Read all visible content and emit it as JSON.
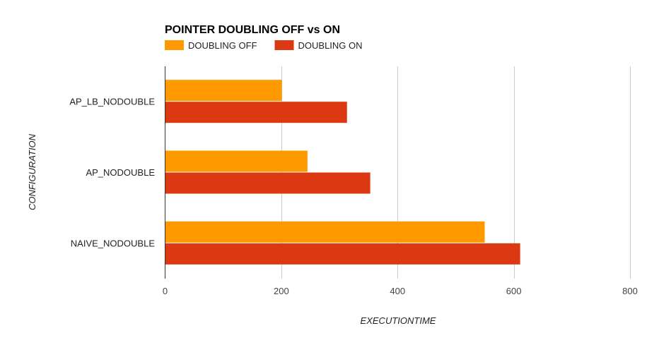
{
  "chart_data": {
    "type": "bar",
    "orientation": "horizontal",
    "title": "POINTER DOUBLING OFF vs ON",
    "xlabel": "EXECUTIONTIME",
    "ylabel": "CONFIGURATION",
    "categories": [
      "AP_LB_NODOUBLE",
      "AP_NODOUBLE",
      "NAIVE_NODOUBLE"
    ],
    "series": [
      {
        "name": "DOUBLING OFF",
        "color": "#ff9900",
        "values": [
          201,
          245,
          550
        ]
      },
      {
        "name": "DOUBLING ON",
        "color": "#dc3912",
        "values": [
          313,
          353,
          611
        ]
      }
    ],
    "xlim": [
      0,
      800
    ],
    "xticks": [
      0,
      200,
      400,
      600,
      800
    ],
    "grid": true,
    "legend_position": "top-left"
  }
}
